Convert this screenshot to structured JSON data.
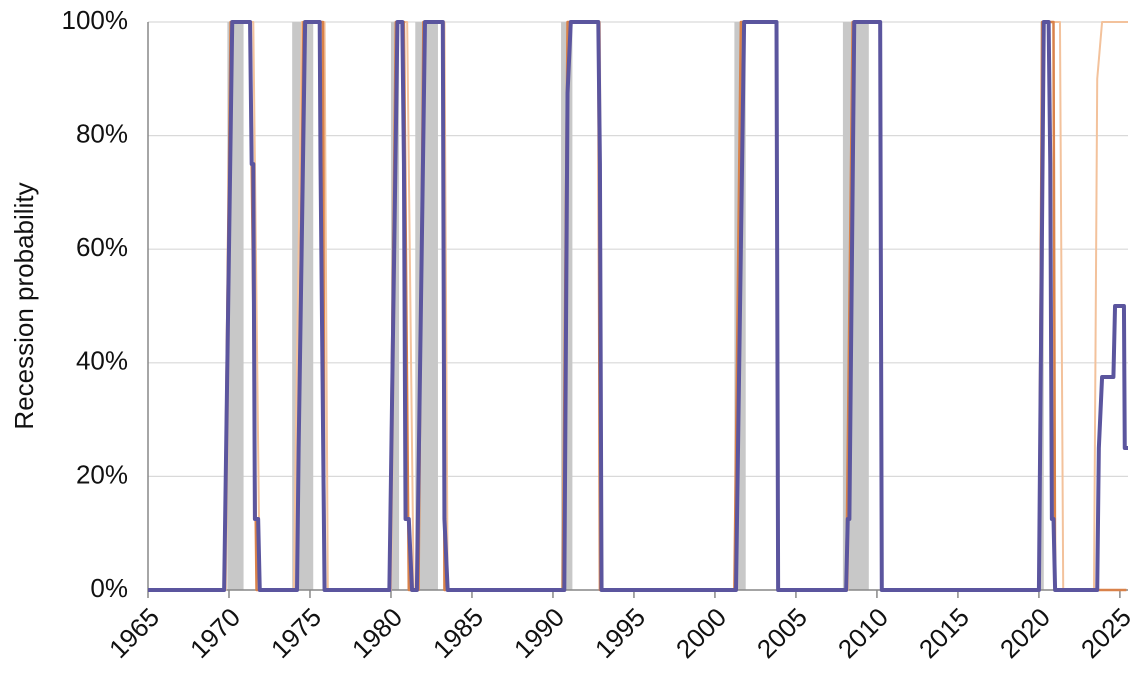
{
  "chart_data": {
    "type": "line",
    "ylabel": "Recession probability",
    "xlim": [
      1965,
      2025.5
    ],
    "xticks": [
      1965,
      1970,
      1975,
      1980,
      1985,
      1990,
      1995,
      2000,
      2005,
      2010,
      2015,
      2020,
      2025
    ],
    "ylim": [
      0,
      100
    ],
    "yticks": [
      {
        "value": 0,
        "label": "0%"
      },
      {
        "value": 20,
        "label": "20%"
      },
      {
        "value": 40,
        "label": "40%"
      },
      {
        "value": 60,
        "label": "60%"
      },
      {
        "value": 80,
        "label": "80%"
      },
      {
        "value": 100,
        "label": "100%"
      }
    ],
    "grid": true,
    "shade_color": "#c8c8c8",
    "shaded_regions": [
      [
        1969.9,
        1970.9
      ],
      [
        1973.9,
        1975.2
      ],
      [
        1980.0,
        1980.5
      ],
      [
        1981.5,
        1982.9
      ],
      [
        1990.5,
        1991.2
      ],
      [
        2001.2,
        2001.9
      ],
      [
        2007.9,
        2009.5
      ],
      [
        2020.1,
        2020.3
      ]
    ],
    "series": [
      {
        "color": "#f3c29c",
        "width": 2,
        "x": [
          1965,
          1969.8,
          1970.2,
          1971.5,
          1971.9,
          1974.0,
          1974.5,
          1975.9,
          1976.1,
          1980.0,
          1980.4,
          1981.0,
          1981.4,
          1981.7,
          1982.0,
          1983.3,
          1983.5,
          1990.6,
          1991.0,
          1992.9,
          1993.0,
          2001.3,
          2001.6,
          2003.8,
          2003.9,
          2008.2,
          2008.6,
          2010.2,
          2010.3,
          2020.0,
          2020.2,
          2021.3,
          2021.5,
          2023.4,
          2023.6,
          2023.9,
          2025.5
        ],
        "values": [
          0,
          0,
          100,
          100,
          0,
          0,
          100,
          100,
          0,
          0,
          100,
          100,
          0,
          0,
          100,
          100,
          0,
          0,
          100,
          100,
          0,
          0,
          100,
          100,
          0,
          0,
          100,
          100,
          0,
          0,
          100,
          100,
          0,
          0,
          90,
          100,
          100
        ]
      },
      {
        "color": "#d9824a",
        "width": 2.5,
        "x": [
          1965,
          1969.7,
          1970.1,
          1971.3,
          1971.7,
          1974.2,
          1974.6,
          1975.8,
          1975.9,
          1979.9,
          1980.3,
          1980.8,
          1981.1,
          1981.7,
          1982.0,
          1983.2,
          1983.3,
          1990.6,
          1990.9,
          1992.8,
          1992.9,
          2001.2,
          2001.6,
          2003.8,
          2003.9,
          2008.1,
          2008.5,
          2010.2,
          2010.3,
          2020.0,
          2020.2,
          2020.9,
          2021.0,
          2025.4
        ],
        "values": [
          0,
          0,
          100,
          100,
          0,
          0,
          100,
          100,
          0,
          0,
          100,
          100,
          0,
          0,
          100,
          100,
          0,
          0,
          100,
          100,
          0,
          0,
          100,
          100,
          0,
          0,
          100,
          100,
          0,
          0,
          100,
          100,
          0,
          0
        ]
      },
      {
        "color": "#5b559e",
        "width": 4,
        "x": [
          1965,
          1969.7,
          1970.2,
          1971.3,
          1971.4,
          1971.5,
          1971.6,
          1971.8,
          1971.9,
          1974.2,
          1974.3,
          1974.7,
          1975.6,
          1975.65,
          1975.9,
          1979.9,
          1980.4,
          1980.7,
          1980.8,
          1980.9,
          1981.1,
          1981.3,
          1981.6,
          1982.1,
          1983.2,
          1983.3,
          1983.5,
          1990.7,
          1990.9,
          1991.1,
          1992.8,
          1992.9,
          1993.0,
          2001.3,
          2001.8,
          2003.8,
          2003.9,
          2008.1,
          2008.2,
          2008.3,
          2008.6,
          2010.2,
          2010.3,
          2020.0,
          2020.3,
          2020.6,
          2020.7,
          2020.8,
          2020.9,
          2021.0,
          2023.6,
          2023.7,
          2023.9,
          2024.6,
          2024.7,
          2025.25,
          2025.3,
          2025.5
        ],
        "values": [
          0,
          0,
          100,
          100,
          75,
          75,
          12.5,
          12.5,
          0,
          0,
          25,
          100,
          100,
          75,
          0,
          0,
          100,
          100,
          75,
          12.5,
          12.5,
          0,
          0,
          100,
          100,
          12.5,
          0,
          0,
          87.5,
          100,
          100,
          75,
          0,
          0,
          100,
          100,
          0,
          0,
          12.5,
          12.5,
          100,
          100,
          0,
          0,
          100,
          100,
          75,
          12.5,
          12.5,
          0,
          0,
          25,
          37.5,
          37.5,
          50,
          50,
          25,
          25
        ]
      }
    ]
  }
}
